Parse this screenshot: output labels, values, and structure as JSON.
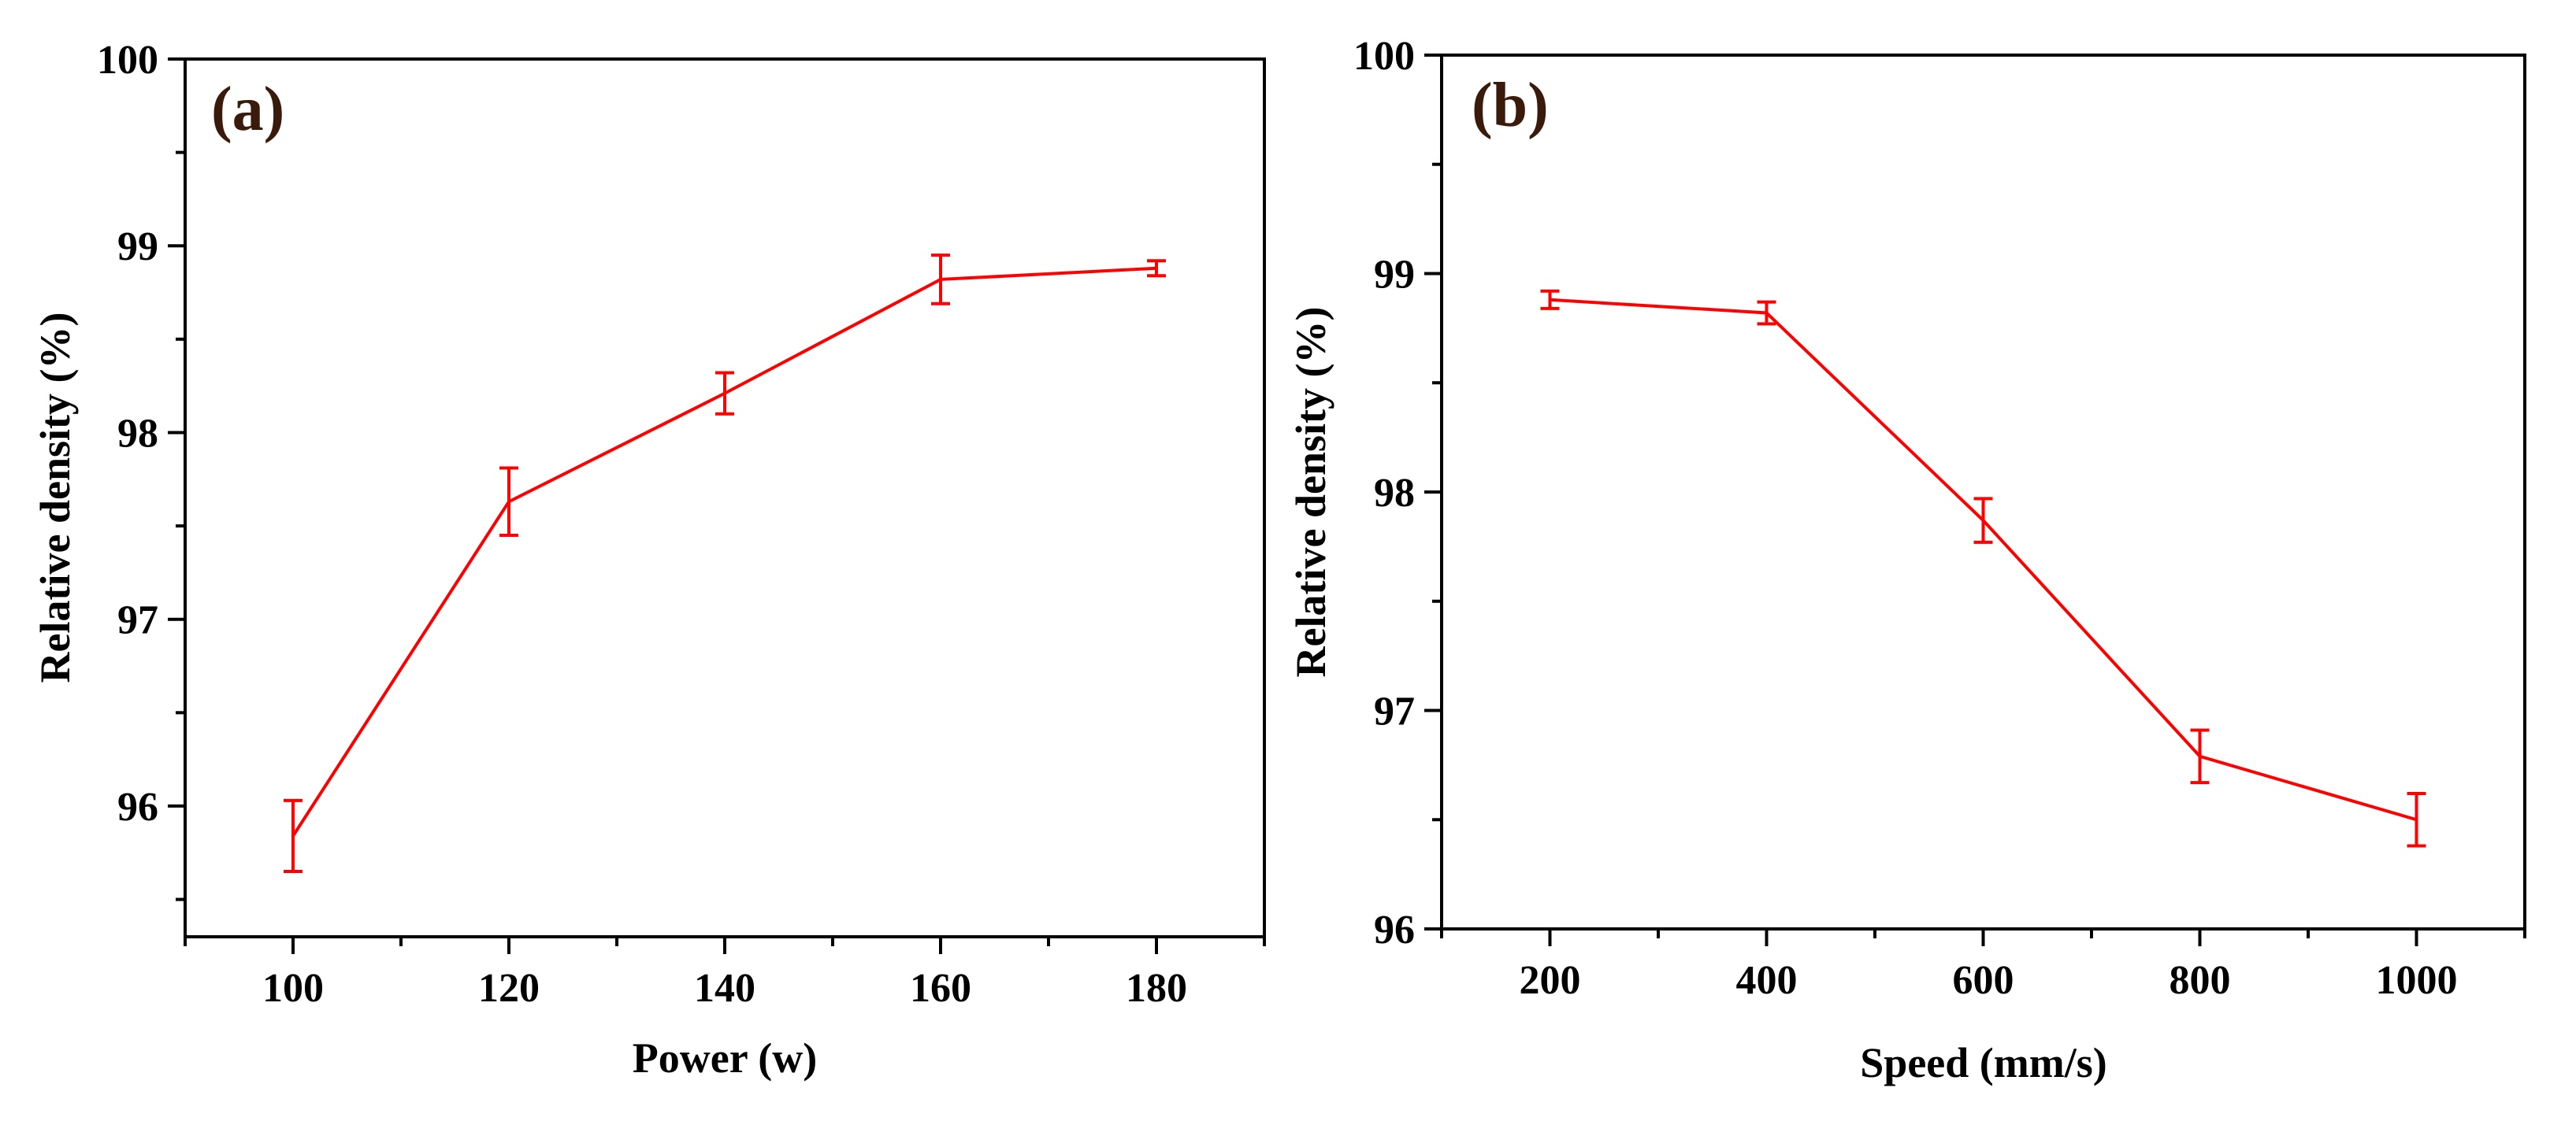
{
  "chart_data": [
    {
      "type": "line",
      "panel_label": "(a)",
      "title": "",
      "xlabel": "Power (w)",
      "ylabel": "Relative density (%)",
      "xlim": [
        90,
        190
      ],
      "ylim": [
        95.3,
        100
      ],
      "xticks": [
        100,
        120,
        140,
        160,
        180
      ],
      "xtick_labels": [
        "100",
        "120",
        "140",
        "160",
        "180"
      ],
      "yticks": [
        96,
        97,
        98,
        99,
        100
      ],
      "ytick_labels": [
        "96",
        "97",
        "98",
        "99",
        "100"
      ],
      "grid": false,
      "series": [
        {
          "name": "Relative density",
          "color": "#ff0000",
          "x": [
            100,
            120,
            140,
            160,
            180
          ],
          "y": [
            95.84,
            97.63,
            98.21,
            98.82,
            98.88
          ],
          "yerr": [
            0.19,
            0.18,
            0.11,
            0.13,
            0.04
          ]
        }
      ]
    },
    {
      "type": "line",
      "panel_label": "(b)",
      "title": "",
      "xlabel": "Speed (mm/s)",
      "ylabel": "Relative density (%)",
      "xlim": [
        100,
        1100
      ],
      "ylim": [
        96,
        100
      ],
      "xticks": [
        200,
        400,
        600,
        800,
        1000
      ],
      "xtick_labels": [
        "200",
        "400",
        "600",
        "800",
        "1000"
      ],
      "yticks": [
        96,
        97,
        98,
        99,
        100
      ],
      "ytick_labels": [
        "96",
        "97",
        "98",
        "99",
        "100"
      ],
      "grid": false,
      "series": [
        {
          "name": "Relative density",
          "color": "#ff0000",
          "x": [
            200,
            400,
            600,
            800,
            1000
          ],
          "y": [
            98.88,
            98.82,
            97.87,
            96.79,
            96.5
          ],
          "yerr": [
            0.04,
            0.05,
            0.1,
            0.12,
            0.12
          ]
        }
      ]
    }
  ]
}
